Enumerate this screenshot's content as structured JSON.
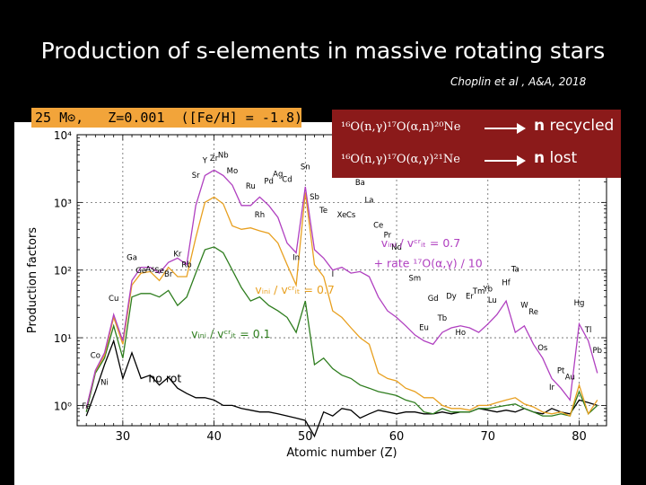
{
  "slide": {
    "title": "Production of s-elements in massive rotating stars",
    "citation": "Choplin et al , A&A, 2018"
  },
  "model_label": "25 M⊙,   Z=0.001  ([Fe/H] = -1.8)",
  "reactions": [
    {
      "equation": "¹⁶O(n,γ)¹⁷O(α,n)²⁰Ne",
      "result_bold": "n",
      "result_rest": " recycled"
    },
    {
      "equation": "¹⁶O(n,γ)¹⁷O(α,γ)²¹Ne",
      "result_bold": "n",
      "result_rest": " lost"
    }
  ],
  "colors": {
    "no_rot": "#000000",
    "rot_01": "#2e7d1e",
    "rot_07": "#e8a020",
    "rot_07_rate": "#b040c0",
    "red": "#8b1a1a",
    "orange": "#f2a43a"
  },
  "chart_data": {
    "type": "line",
    "xlabel": "Atomic number (Z)",
    "ylabel": "Production factors",
    "xlim": [
      25,
      83
    ],
    "ylim_log10": [
      -0.3,
      4.0
    ],
    "x_ticks": [
      30,
      40,
      50,
      60,
      70,
      80
    ],
    "y_ticks": [
      {
        "value": 1,
        "label": "10⁰"
      },
      {
        "value": 10,
        "label": "10¹"
      },
      {
        "value": 100,
        "label": "10²"
      },
      {
        "value": 1000,
        "label": "10³"
      },
      {
        "value": 10000,
        "label": "10⁴"
      }
    ],
    "grid": true,
    "x": [
      26,
      27,
      28,
      29,
      30,
      31,
      32,
      33,
      34,
      35,
      36,
      37,
      38,
      39,
      40,
      41,
      42,
      43,
      44,
      45,
      46,
      47,
      48,
      49,
      50,
      51,
      52,
      53,
      54,
      55,
      56,
      57,
      58,
      59,
      60,
      61,
      62,
      63,
      64,
      65,
      66,
      67,
      68,
      69,
      70,
      71,
      72,
      73,
      74,
      75,
      76,
      77,
      78,
      79,
      80,
      81,
      82
    ],
    "series": [
      {
        "name": "no rot",
        "color_key": "no_rot",
        "values": [
          0.7,
          1.6,
          4.0,
          9.0,
          2.5,
          6.0,
          2.5,
          2.8,
          2.0,
          2.6,
          1.8,
          1.5,
          1.3,
          1.3,
          1.2,
          1.0,
          1.0,
          0.9,
          0.85,
          0.8,
          0.8,
          0.75,
          0.7,
          0.65,
          0.6,
          0.35,
          0.8,
          0.7,
          0.9,
          0.85,
          0.65,
          0.75,
          0.85,
          0.8,
          0.75,
          0.8,
          0.8,
          0.75,
          0.75,
          0.8,
          0.75,
          0.8,
          0.8,
          0.9,
          0.85,
          0.8,
          0.85,
          0.8,
          0.9,
          0.8,
          0.75,
          0.9,
          0.8,
          0.75,
          1.2,
          1.1,
          1.0
        ]
      },
      {
        "name": "v_ini / v_crit = 0.1",
        "color_key": "rot_01",
        "values": [
          0.8,
          3.0,
          5.0,
          15.0,
          5.0,
          40.0,
          45.0,
          45.0,
          40.0,
          50.0,
          30.0,
          40.0,
          90.0,
          200.0,
          220.0,
          180.0,
          100.0,
          55.0,
          35.0,
          40.0,
          30.0,
          25.0,
          20.0,
          12.0,
          35.0,
          4.0,
          5.0,
          3.5,
          2.8,
          2.5,
          2.0,
          1.8,
          1.6,
          1.5,
          1.4,
          1.2,
          1.1,
          0.8,
          0.75,
          0.9,
          0.8,
          0.8,
          0.8,
          0.9,
          0.9,
          0.95,
          1.0,
          1.05,
          0.9,
          0.8,
          0.7,
          0.7,
          0.75,
          0.7,
          1.6,
          0.75,
          1.0
        ]
      },
      {
        "name": "v_ini / v_crit = 0.7",
        "color_key": "rot_07",
        "values": [
          0.9,
          3.2,
          5.5,
          20.0,
          8.0,
          60.0,
          90.0,
          95.0,
          70.0,
          110.0,
          80.0,
          80.0,
          300.0,
          1000.0,
          1200.0,
          950.0,
          450.0,
          400.0,
          420.0,
          380.0,
          350.0,
          250.0,
          120.0,
          60.0,
          1400.0,
          120.0,
          80.0,
          25.0,
          20.0,
          14.0,
          10.0,
          8.0,
          3.0,
          2.5,
          2.3,
          1.8,
          1.6,
          1.3,
          1.3,
          1.0,
          0.9,
          0.9,
          0.85,
          1.0,
          1.0,
          1.1,
          1.2,
          1.3,
          1.05,
          0.95,
          0.8,
          0.75,
          0.8,
          0.7,
          2.0,
          0.75,
          1.2
        ]
      },
      {
        "name": "v_ini / v_crit = 0.7 + rate ¹⁷O(α,γ) / 10",
        "color_key": "rot_07_rate",
        "values": [
          0.9,
          3.3,
          6.0,
          22.0,
          9.0,
          70.0,
          110.0,
          110.0,
          90.0,
          130.0,
          150.0,
          120.0,
          900.0,
          2500.0,
          3000.0,
          2500.0,
          1800.0,
          900.0,
          900.0,
          1200.0,
          900.0,
          600.0,
          250.0,
          180.0,
          1700.0,
          200.0,
          150.0,
          100.0,
          110.0,
          90.0,
          95.0,
          80.0,
          40.0,
          25.0,
          20.0,
          15.0,
          11.0,
          9.0,
          8.0,
          12.0,
          14.0,
          15.0,
          14.0,
          12.0,
          16.0,
          22.0,
          35.0,
          12.0,
          15.0,
          8.0,
          5.0,
          2.5,
          1.8,
          1.2,
          16.0,
          9.0,
          3.0
        ]
      }
    ],
    "series_labels": [
      {
        "text": "vᵢₙᵢ / vᶜʳᵢₜ = 0.1",
        "color_key": "rot_01"
      },
      {
        "text": "vᵢₙᵢ / vᶜʳᵢₜ = 0.7",
        "color_key": "rot_07"
      },
      {
        "text": "vᵢₙᵢ / vᶜʳᵢₜ = 0.7",
        "color_key": "rot_07_rate"
      },
      {
        "text": "+ rate ¹⁷O(α,γ) / 10",
        "color_key": "rot_07_rate"
      },
      {
        "text": "no rot",
        "color_key": "no_rot"
      }
    ],
    "element_labels": [
      {
        "el": "Fe",
        "z": 26,
        "v": 0.9
      },
      {
        "el": "Co",
        "z": 27,
        "v": 5.0
      },
      {
        "el": "Ni",
        "z": 28,
        "v": 2.0
      },
      {
        "el": "Cu",
        "z": 29,
        "v": 35
      },
      {
        "el": "Ga",
        "z": 31,
        "v": 140
      },
      {
        "el": "Ge",
        "z": 32,
        "v": 90
      },
      {
        "el": "As",
        "z": 33,
        "v": 95
      },
      {
        "el": "Se",
        "z": 34,
        "v": 90
      },
      {
        "el": "Br",
        "z": 35,
        "v": 80
      },
      {
        "el": "Kr",
        "z": 36,
        "v": 160
      },
      {
        "el": "Rb",
        "z": 37,
        "v": 110
      },
      {
        "el": "Sr",
        "z": 38,
        "v": 2300
      },
      {
        "el": "Y",
        "z": 39,
        "v": 3800
      },
      {
        "el": "Zr",
        "z": 40,
        "v": 4100
      },
      {
        "el": "Nb",
        "z": 41,
        "v": 4600
      },
      {
        "el": "Mo",
        "z": 42,
        "v": 2700
      },
      {
        "el": "Ru",
        "z": 44,
        "v": 1600
      },
      {
        "el": "Rh",
        "z": 45,
        "v": 600
      },
      {
        "el": "Pd",
        "z": 46,
        "v": 1900
      },
      {
        "el": "Ag",
        "z": 47,
        "v": 2400
      },
      {
        "el": "Cd",
        "z": 48,
        "v": 2000
      },
      {
        "el": "In",
        "z": 49,
        "v": 140
      },
      {
        "el": "Sn",
        "z": 50,
        "v": 3100
      },
      {
        "el": "Sb",
        "z": 51,
        "v": 1100
      },
      {
        "el": "Te",
        "z": 52,
        "v": 700
      },
      {
        "el": "I",
        "z": 53,
        "v": 80
      },
      {
        "el": "Xe",
        "z": 54,
        "v": 600
      },
      {
        "el": "Cs",
        "z": 55,
        "v": 600
      },
      {
        "el": "Ba",
        "z": 56,
        "v": 1800
      },
      {
        "el": "La",
        "z": 57,
        "v": 1000
      },
      {
        "el": "Ce",
        "z": 58,
        "v": 420
      },
      {
        "el": "Pr",
        "z": 59,
        "v": 300
      },
      {
        "el": "Nd",
        "z": 60,
        "v": 200
      },
      {
        "el": "Sm",
        "z": 62,
        "v": 70
      },
      {
        "el": "Eu",
        "z": 63,
        "v": 13
      },
      {
        "el": "Gd",
        "z": 64,
        "v": 35
      },
      {
        "el": "Tb",
        "z": 65,
        "v": 18
      },
      {
        "el": "Dy",
        "z": 66,
        "v": 38
      },
      {
        "el": "Ho",
        "z": 67,
        "v": 11
      },
      {
        "el": "Er",
        "z": 68,
        "v": 38
      },
      {
        "el": "Tm",
        "z": 69,
        "v": 45
      },
      {
        "el": "Yb",
        "z": 70,
        "v": 48
      },
      {
        "el": "Lu",
        "z": 70.5,
        "v": 33
      },
      {
        "el": "Hf",
        "z": 72,
        "v": 60
      },
      {
        "el": "Ta",
        "z": 73,
        "v": 95
      },
      {
        "el": "W",
        "z": 74,
        "v": 28
      },
      {
        "el": "Re",
        "z": 75,
        "v": 22
      },
      {
        "el": "Os",
        "z": 76,
        "v": 6.5
      },
      {
        "el": "Ir",
        "z": 77,
        "v": 1.7
      },
      {
        "el": "Pt",
        "z": 78,
        "v": 3.0
      },
      {
        "el": "Au",
        "z": 79,
        "v": 2.4
      },
      {
        "el": "Hg",
        "z": 80,
        "v": 30
      },
      {
        "el": "Tl",
        "z": 81,
        "v": 12
      },
      {
        "el": "Pb",
        "z": 82,
        "v": 6.0
      }
    ]
  }
}
